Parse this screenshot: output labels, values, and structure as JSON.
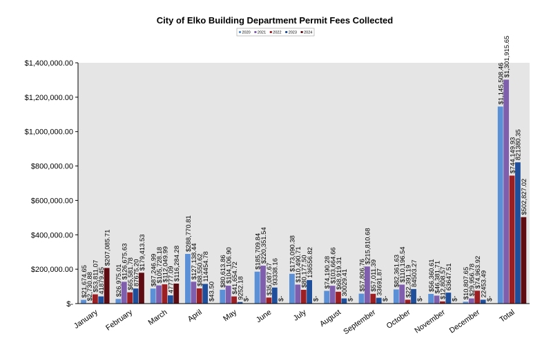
{
  "chart_data": {
    "type": "bar",
    "title": "City of Elko Building Department Permit Fees Collected",
    "categories": [
      "January",
      "February",
      "March",
      "April",
      "May",
      "June",
      "July",
      "August",
      "September",
      "October",
      "November",
      "December",
      "Total"
    ],
    "series": [
      {
        "name": "2020",
        "color": "#5b8fd6",
        "values": [
          21674.65,
          26975.01,
          87246.99,
          288770.81,
          80613.86,
          185709.84,
          173090.38,
          74190.28,
          57806.76,
          82361.63,
          56360.61,
          10807.65,
          1145508.46
        ],
        "labels": [
          "$21,674.65",
          "$26,975.01",
          "$87,246.99",
          "$288,770.81",
          "$80,613.86",
          "$185,709.84",
          "$173,090.38",
          "$74,190.28",
          "$57,806.76",
          "$82,361.63",
          "$56,360.61",
          "$10,807.65",
          "$1,145,508.46"
        ]
      },
      {
        "name": "2021",
        "color": "#7f5fad",
        "values": [
          2730.88,
          126675.63,
          105728.18,
          127138.44,
          104106.9,
          220351.54,
          110490.71,
          103664.66,
          215810.68,
          110196.54,
          46381.71,
          29956.78,
          1301915.65
        ],
        "labels": [
          "$2,730.88",
          "$126,675.63",
          "$105,728.18",
          "$127,138.44",
          "$104,106.90",
          "$220,351.54",
          "$110,490.71",
          "$103,664.66",
          "$215,810.68",
          "$110,196.54",
          "$46,381.71",
          "$29,956.78",
          "$1,301,915.65"
        ]
      },
      {
        "name": "2022",
        "color": "#9c1f24",
        "values": [
          53811.07,
          65581.78,
          112049.99,
          88550.62,
          41654.72,
          35087.67,
          80177.5,
          68919.31,
          57011.39,
          22391.19,
          12808.57,
          74963.92,
          744149.93
        ],
        "labels": [
          "$53,811.07",
          "$65,581.78",
          "$112,049.99",
          "$88,550.62",
          "$41,654.72",
          "$35,087.67",
          "$80,177.50",
          "$68,919.31",
          "$57,011.39",
          "$22,391.19",
          "$12,808.57",
          "$74,963.92",
          "$744,149.93"
        ]
      },
      {
        "name": "2023",
        "color": "#1f4f9a",
        "values": [
          41879.45,
          87675.2,
          47777.09,
          114454.78,
          9252.18,
          93338.16,
          136556.82,
          30029.41,
          33691.87,
          84503.27,
          63647.51,
          22453.49,
          821380.35
        ],
        "labels": [
          "41879.45",
          "87675.20",
          "47777.09",
          "114454.78",
          "9252.18",
          "93338.16",
          "136556.82",
          "30029.41",
          "33691.87",
          "84503.27",
          "63647.51",
          "22453.49",
          "821380.35"
        ]
      },
      {
        "name": "2024",
        "color": "#5e0c12",
        "values": [
          207085.71,
          179413.53,
          116284.28,
          43.5,
          0,
          0,
          0,
          0,
          0,
          0,
          0,
          0,
          502827.02
        ],
        "labels": [
          "$207,085.71",
          "$179,413.53",
          "$116,284.28",
          "$43.50",
          "$-",
          "$-",
          "$-",
          "$-",
          "$-",
          "$-",
          "$-",
          "$-",
          "$502,827.02"
        ]
      }
    ],
    "ylim": [
      0,
      1400000
    ],
    "yticks": [
      0,
      200000,
      400000,
      600000,
      800000,
      1000000,
      1200000,
      1400000
    ],
    "ytick_labels": [
      "$-",
      "$200,000.00",
      "$400,000.00",
      "$600,000.00",
      "$800,000.00",
      "$1,000,000.00",
      "$1,200,000.00",
      "$1,400,000.00"
    ],
    "xlabel": "",
    "ylabel": "",
    "legend": "top-center",
    "grid": false,
    "colors": {
      "plot_area": "#e5e5e5",
      "axis": "#000000"
    }
  }
}
